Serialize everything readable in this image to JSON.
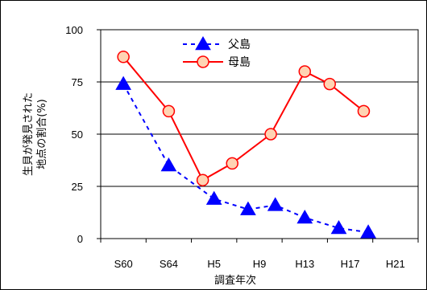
{
  "chart_data": {
    "type": "line",
    "title": "",
    "xlabel": "調査年次",
    "ylabel_lines": [
      "生貝が発見された",
      "地点の割合(%)"
    ],
    "categories": [
      "S60",
      "S64",
      "H5",
      "H9",
      "H13",
      "H17",
      "H21"
    ],
    "ylim": [
      0,
      100
    ],
    "yticks": [
      "0",
      "25",
      "50",
      "75",
      "100"
    ],
    "grid": true,
    "legend_position": "top-center",
    "series": [
      {
        "name": "父島",
        "color": "#0000ff",
        "marker": "triangle",
        "line_style": "dashed",
        "points": [
          [
            0,
            74
          ],
          [
            1,
            35
          ],
          [
            2,
            19
          ],
          [
            2.75,
            14
          ],
          [
            3.35,
            16
          ],
          [
            4,
            10
          ],
          [
            4.75,
            5
          ],
          [
            5.4,
            3
          ]
        ]
      },
      {
        "name": "母島",
        "color": "#ff0000",
        "marker": "circle",
        "line_style": "solid",
        "points": [
          [
            0,
            87
          ],
          [
            1,
            61
          ],
          [
            1.75,
            28
          ],
          [
            2.4,
            36
          ],
          [
            3.25,
            50
          ],
          [
            4,
            80
          ],
          [
            4.55,
            74
          ],
          [
            5.3,
            61
          ]
        ]
      }
    ]
  }
}
